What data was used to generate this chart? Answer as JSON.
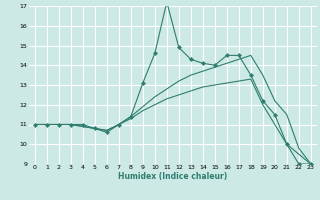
{
  "xlabel": "Humidex (Indice chaleur)",
  "bg_color": "#cce9e5",
  "grid_color": "#ffffff",
  "line_color": "#2e7d6e",
  "marker_color": "#2e7d6e",
  "xlim": [
    -0.5,
    23.5
  ],
  "ylim": [
    9,
    17
  ],
  "xticks": [
    0,
    1,
    2,
    3,
    4,
    5,
    6,
    7,
    8,
    9,
    10,
    11,
    12,
    13,
    14,
    15,
    16,
    17,
    18,
    19,
    20,
    21,
    22,
    23
  ],
  "yticks": [
    9,
    10,
    11,
    12,
    13,
    14,
    15,
    16,
    17
  ],
  "series": [
    {
      "x": [
        0,
        1,
        2,
        3,
        4,
        5,
        6,
        7,
        8,
        9,
        10,
        11,
        12,
        13,
        14,
        15,
        16,
        17,
        18,
        19,
        20,
        21,
        22,
        23
      ],
      "y": [
        11,
        11,
        11,
        11,
        11,
        10.8,
        10.6,
        11,
        11.4,
        13.1,
        14.6,
        17.2,
        14.9,
        14.3,
        14.1,
        14.0,
        14.5,
        14.5,
        13.5,
        12.2,
        11.5,
        10.0,
        9.0,
        9.0
      ],
      "has_markers": true
    },
    {
      "x": [
        0,
        3,
        5,
        6,
        7,
        8,
        9,
        10,
        11,
        12,
        13,
        14,
        15,
        16,
        17,
        18,
        19,
        20,
        21,
        22,
        23
      ],
      "y": [
        11,
        11,
        10.8,
        10.7,
        11.0,
        11.4,
        11.9,
        12.4,
        12.8,
        13.2,
        13.5,
        13.7,
        13.9,
        14.1,
        14.3,
        14.5,
        13.5,
        12.2,
        11.5,
        9.8,
        9.0
      ],
      "has_markers": false
    },
    {
      "x": [
        0,
        3,
        5,
        6,
        7,
        8,
        9,
        10,
        11,
        12,
        13,
        14,
        15,
        16,
        17,
        18,
        19,
        20,
        21,
        22,
        23
      ],
      "y": [
        11,
        11,
        10.8,
        10.7,
        11.0,
        11.3,
        11.7,
        12.0,
        12.3,
        12.5,
        12.7,
        12.9,
        13.0,
        13.1,
        13.2,
        13.3,
        12.0,
        11.0,
        10.0,
        9.5,
        9.0
      ],
      "has_markers": false
    }
  ]
}
